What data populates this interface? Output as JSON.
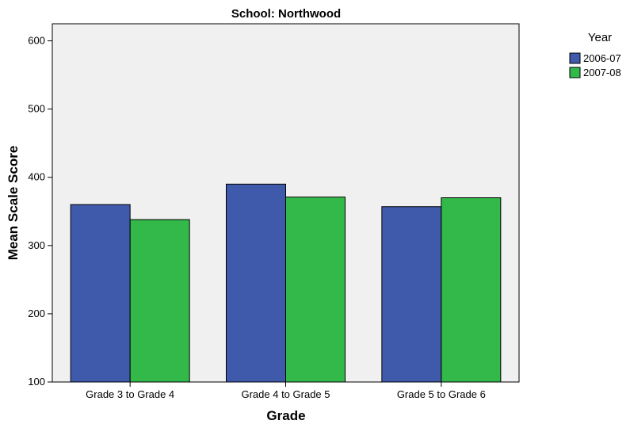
{
  "chart_data": {
    "type": "bar",
    "title": "School: Northwood",
    "xlabel": "Grade",
    "ylabel": "Mean Scale Score",
    "categories": [
      "Grade 3 to Grade 4",
      "Grade 4 to Grade 5",
      "Grade 5 to Grade 6"
    ],
    "series": [
      {
        "name": "2006-07",
        "values": [
          360,
          390,
          357
        ],
        "color": "#3f5aab"
      },
      {
        "name": "2007-08",
        "values": [
          338,
          371,
          370
        ],
        "color": "#33b84a"
      }
    ],
    "ylim": [
      100,
      625
    ],
    "yticks": [
      100,
      200,
      300,
      400,
      500,
      600
    ],
    "legend": {
      "title": "Year",
      "position": "top-right"
    },
    "plot_background": "#f0f0f0",
    "grid": false
  }
}
